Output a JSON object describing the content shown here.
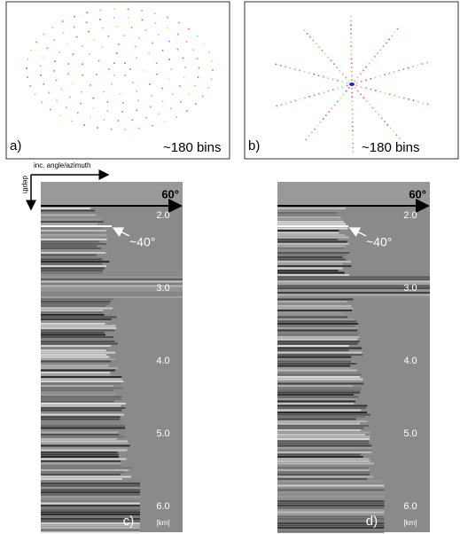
{
  "panel_a": {
    "label": "a)",
    "caption": "~180 bins"
  },
  "panel_b": {
    "label": "b)",
    "caption": "~180 bins"
  },
  "axes_key": {
    "horizontal": "inc. angle/azimuth",
    "vertical": "depth"
  },
  "panel_c": {
    "label": "c)",
    "angle": "60°",
    "annotation": "~40°",
    "depth_labels": [
      "2.0",
      "3.0",
      "4.0",
      "5.0",
      "6.0"
    ],
    "unit": "[km]"
  },
  "panel_d": {
    "label": "d)",
    "angle": "60°",
    "annotation": "~40°",
    "depth_labels": [
      "2.0",
      "3.0",
      "4.0",
      "5.0",
      "6.0"
    ],
    "unit": "[km]"
  }
}
